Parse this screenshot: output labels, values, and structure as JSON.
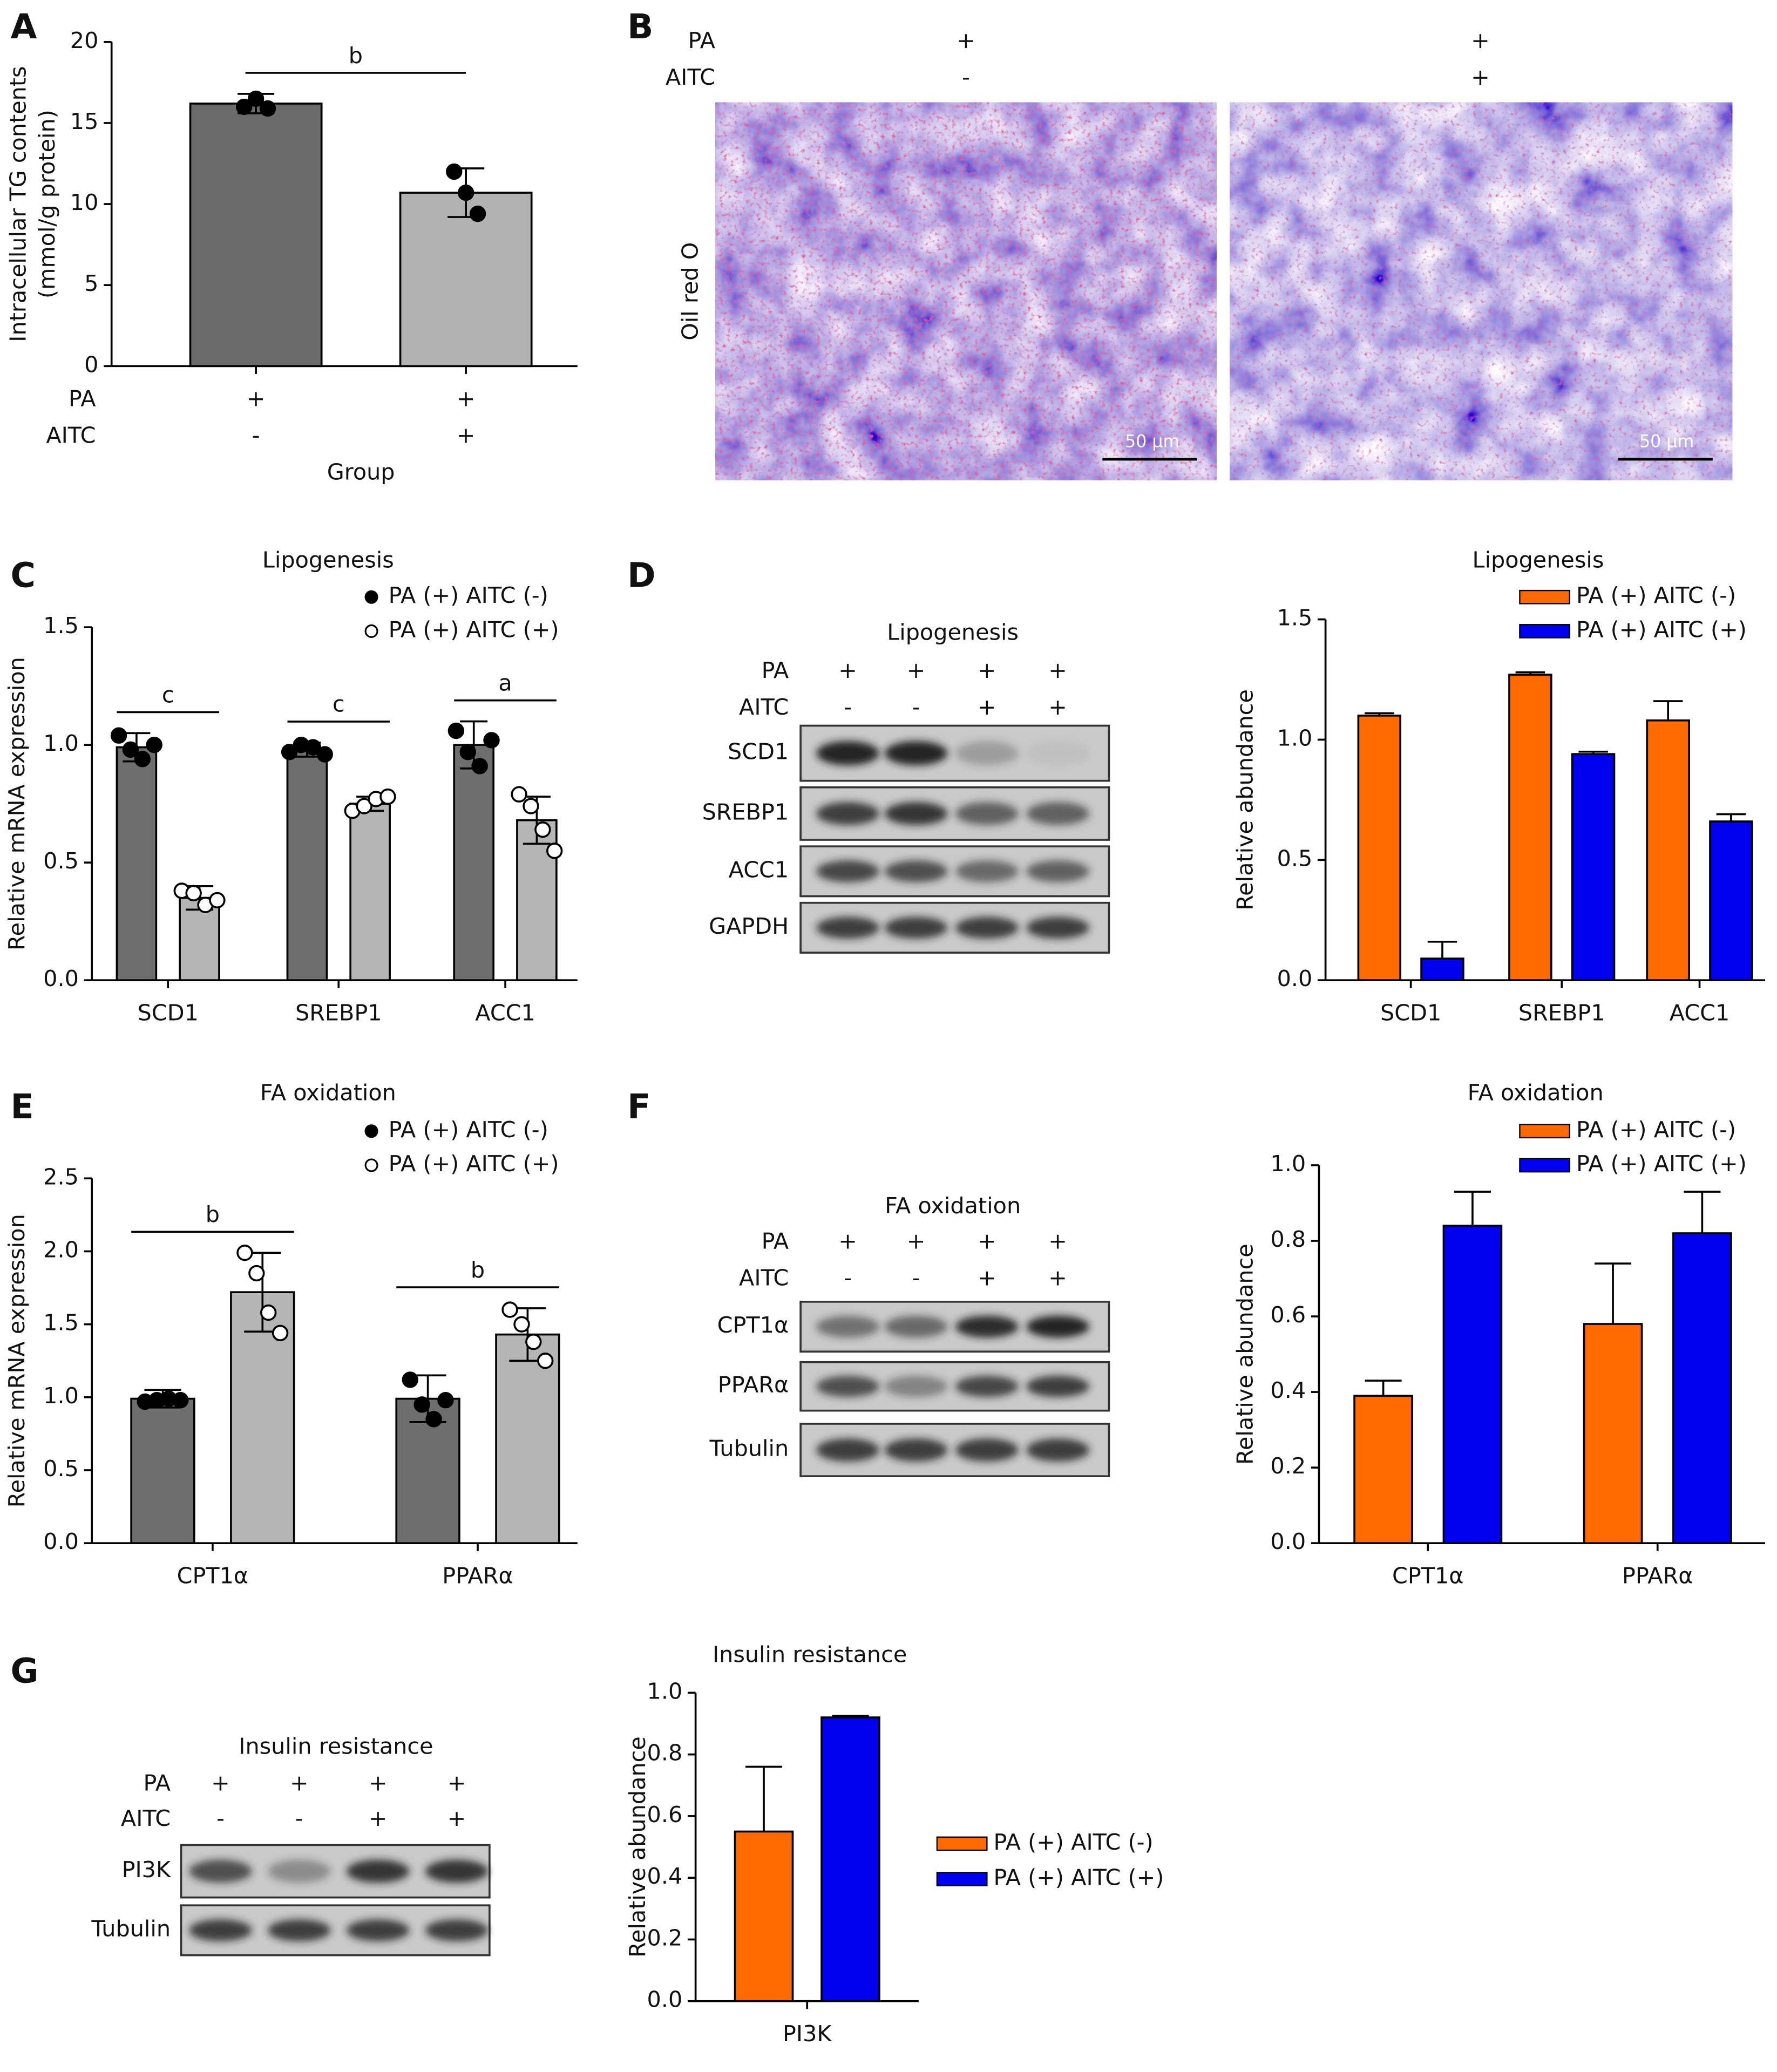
{
  "chart_data": [
    {
      "type": "bar",
      "panel": "A",
      "y_label": [
        "Intracellular TG contents",
        "(mmol/g protein)"
      ],
      "x_label": "Group",
      "conditions": [
        {
          "name": "PA",
          "values": [
            "+",
            "+"
          ]
        },
        {
          "name": "AITC",
          "values": [
            "-",
            "+"
          ]
        }
      ],
      "values": [
        16.2,
        10.7
      ],
      "errors": [
        0.6,
        1.5
      ],
      "points": [
        [
          16.0,
          16.5,
          15.9
        ],
        [
          12.0,
          10.7,
          9.4
        ]
      ],
      "colors": [
        "#6b6b6b",
        "#b2b2b2"
      ],
      "error_direction": "both",
      "significance": [
        "b"
      ],
      "ylim": [
        0,
        20
      ],
      "yticks": [
        0,
        5,
        10,
        15,
        20
      ]
    },
    {
      "type": "bar",
      "panel": "C",
      "title": "Lipogenesis",
      "y_label": "Relative mRNA expression",
      "categories": [
        "SCD1",
        "SREBP1",
        "ACC1"
      ],
      "error_direction": "both",
      "significance": [
        "c",
        "c",
        "a"
      ],
      "legend": "top-right",
      "series": [
        {
          "name": "PA (+) AITC (-)",
          "color": "#6e6e6e",
          "marker": "filled",
          "values": [
            0.99,
            0.98,
            1.0
          ],
          "errors": [
            0.06,
            0.03,
            0.1
          ],
          "points": [
            [
              1.04,
              0.98,
              0.94,
              1.0
            ],
            [
              0.97,
              1.0,
              0.99,
              0.96
            ],
            [
              1.06,
              0.97,
              0.91,
              1.02
            ]
          ]
        },
        {
          "name": "PA (+) AITC (+)",
          "color": "#b5b5b5",
          "marker": "open",
          "values": [
            0.35,
            0.75,
            0.68
          ],
          "errors": [
            0.05,
            0.03,
            0.1
          ],
          "points": [
            [
              0.38,
              0.37,
              0.32,
              0.34
            ],
            [
              0.72,
              0.74,
              0.77,
              0.78
            ],
            [
              0.79,
              0.74,
              0.64,
              0.55
            ]
          ]
        }
      ],
      "ylim": [
        0,
        1.5
      ],
      "yticks": [
        {
          "value": 0,
          "label": "0.0"
        },
        {
          "value": 0.5,
          "label": "0.5"
        },
        {
          "value": 1,
          "label": "1.0"
        },
        {
          "value": 1.5,
          "label": "1.5"
        }
      ]
    },
    {
      "type": "bar",
      "panel": "D",
      "title": "Lipogenesis",
      "y_label": "Relative abundance",
      "categories": [
        "SCD1",
        "SREBP1",
        "ACC1"
      ],
      "error_direction": "up",
      "legend": "top-right",
      "series": [
        {
          "name": "PA (+) AITC (-)",
          "color": "#ff6a00",
          "values": [
            1.1,
            1.27,
            1.08
          ],
          "errors": [
            0.01,
            0.01,
            0.08
          ]
        },
        {
          "name": "PA (+) AITC (+)",
          "color": "#0000ee",
          "values": [
            0.09,
            0.94,
            0.66
          ],
          "errors": [
            0.07,
            0.01,
            0.03
          ]
        }
      ],
      "ylim": [
        0,
        1.5
      ],
      "yticks": [
        {
          "value": 0,
          "label": "0.0"
        },
        {
          "value": 0.5,
          "label": "0.5"
        },
        {
          "value": 1,
          "label": "1.0"
        },
        {
          "value": 1.5,
          "label": "1.5"
        }
      ]
    },
    {
      "type": "bar",
      "panel": "E",
      "title": "FA oxidation",
      "y_label": "Relative mRNA expression",
      "categories": [
        "CPT1α",
        "PPARα"
      ],
      "error_direction": "both",
      "significance": [
        "b",
        "b"
      ],
      "legend": "top-right",
      "series": [
        {
          "name": "PA (+) AITC (-)",
          "color": "#6e6e6e",
          "marker": "filled",
          "values": [
            0.99,
            0.99
          ],
          "errors": [
            0.06,
            0.16
          ],
          "points": [
            [
              0.97,
              0.98,
              0.99,
              0.98
            ],
            [
              1.12,
              0.95,
              0.85,
              0.98
            ]
          ]
        },
        {
          "name": "PA (+) AITC (+)",
          "color": "#b5b5b5",
          "marker": "open",
          "values": [
            1.72,
            1.43
          ],
          "errors": [
            0.27,
            0.18
          ],
          "points": [
            [
              1.99,
              1.85,
              1.58,
              1.44
            ],
            [
              1.6,
              1.5,
              1.38,
              1.25
            ]
          ]
        }
      ],
      "ylim": [
        0,
        2.5
      ],
      "yticks": [
        {
          "value": 0,
          "label": "0.0"
        },
        {
          "value": 0.5,
          "label": "0.5"
        },
        {
          "value": 1,
          "label": "1.0"
        },
        {
          "value": 1.5,
          "label": "1.5"
        },
        {
          "value": 2,
          "label": "2.0"
        },
        {
          "value": 2.5,
          "label": "2.5"
        }
      ]
    },
    {
      "type": "bar",
      "panel": "F",
      "title": "FA oxidation",
      "y_label": "Relative abundance",
      "categories": [
        "CPT1α",
        "PPARα"
      ],
      "error_direction": "up",
      "legend": "top-right",
      "series": [
        {
          "name": "PA (+) AITC (-)",
          "color": "#ff6a00",
          "values": [
            0.39,
            0.58
          ],
          "errors": [
            0.04,
            0.16
          ]
        },
        {
          "name": "PA (+) AITC (+)",
          "color": "#0000ee",
          "values": [
            0.84,
            0.82
          ],
          "errors": [
            0.09,
            0.11
          ]
        }
      ],
      "ylim": [
        0,
        1.0
      ],
      "yticks": [
        {
          "value": 0,
          "label": "0.0"
        },
        {
          "value": 0.2,
          "label": "0.2"
        },
        {
          "value": 0.4,
          "label": "0.4"
        },
        {
          "value": 0.6,
          "label": "0.6"
        },
        {
          "value": 0.8,
          "label": "0.8"
        },
        {
          "value": 1,
          "label": "1.0"
        }
      ]
    },
    {
      "type": "bar",
      "panel": "G",
      "title": "Insulin resistance",
      "y_label": "Relative abundance",
      "categories": [
        "PI3K"
      ],
      "error_direction": "up",
      "legend": "right",
      "series": [
        {
          "name": "PA (+) AITC (-)",
          "color": "#ff6a00",
          "values": [
            0.55
          ],
          "errors": [
            0.21
          ]
        },
        {
          "name": "PA (+) AITC (+)",
          "color": "#0000ee",
          "values": [
            0.92
          ],
          "errors": [
            0.005
          ]
        }
      ],
      "ylim": [
        0,
        1.0
      ],
      "yticks": [
        {
          "value": 0,
          "label": "0.0"
        },
        {
          "value": 0.2,
          "label": "0.2"
        },
        {
          "value": 0.4,
          "label": "0.4"
        },
        {
          "value": 0.6,
          "label": "0.6"
        },
        {
          "value": 0.8,
          "label": "0.8"
        },
        {
          "value": 1,
          "label": "1.0"
        }
      ]
    }
  ],
  "panel_b": {
    "panel": "B",
    "conditions": [
      {
        "name": "PA",
        "values": [
          "+",
          "+"
        ]
      },
      {
        "name": "AITC",
        "values": [
          "-",
          "+"
        ]
      }
    ],
    "stain": "Oil red O",
    "scale_bar": "50 µm"
  },
  "blots": [
    {
      "title": "Lipogenesis",
      "conditions": [
        {
          "name": "PA",
          "values": [
            "+",
            "+",
            "+",
            "+"
          ]
        },
        {
          "name": "AITC",
          "values": [
            "-",
            "-",
            "+",
            "+"
          ]
        }
      ],
      "bands": [
        "SCD1",
        "SREBP1",
        "ACC1",
        "GAPDH"
      ]
    },
    {
      "title": "FA oxidation",
      "conditions": [
        {
          "name": "PA",
          "values": [
            "+",
            "+",
            "+",
            "+"
          ]
        },
        {
          "name": "AITC",
          "values": [
            "-",
            "-",
            "+",
            "+"
          ]
        }
      ],
      "bands": [
        "CPT1α",
        "PPARα",
        "Tubulin"
      ]
    },
    {
      "title": "Insulin resistance",
      "conditions": [
        {
          "name": "PA",
          "values": [
            "+",
            "+",
            "+",
            "+"
          ]
        },
        {
          "name": "AITC",
          "values": [
            "-",
            "-",
            "+",
            "+"
          ]
        }
      ],
      "bands": [
        "PI3K",
        "Tubulin"
      ]
    }
  ]
}
